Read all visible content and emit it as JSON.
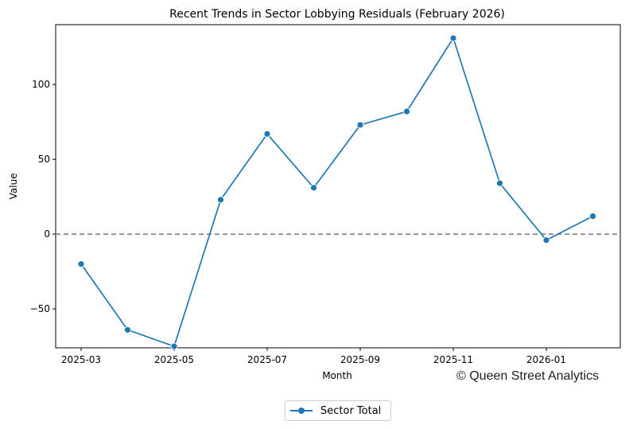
{
  "chart_data": {
    "type": "line",
    "title": "Recent Trends in Sector Lobbying Residuals (February 2026)",
    "xlabel": "Month",
    "ylabel": "Value",
    "x": [
      "2025-03",
      "2025-04",
      "2025-05",
      "2025-06",
      "2025-07",
      "2025-08",
      "2025-09",
      "2025-10",
      "2025-11",
      "2025-12",
      "2026-01",
      "2026-02"
    ],
    "x_tick_labels": [
      "2025-03",
      "2025-05",
      "2025-07",
      "2025-09",
      "2025-11",
      "2026-01"
    ],
    "y_ticks": [
      -50,
      0,
      50,
      100
    ],
    "y_tick_labels": [
      "−50",
      "0",
      "50",
      "100"
    ],
    "ylim": [
      -76,
      140
    ],
    "series": [
      {
        "name": "Sector Total",
        "color": "#1f77b4",
        "values": [
          -20,
          -64,
          -75,
          23,
          67,
          31,
          73,
          82,
          131,
          34,
          -4,
          12
        ]
      }
    ],
    "reference_line": {
      "y": 0,
      "style": "dashed",
      "color": "#808080"
    },
    "legend_position": "bottom-center",
    "grid": false
  },
  "credit": "© Queen Street Analytics"
}
